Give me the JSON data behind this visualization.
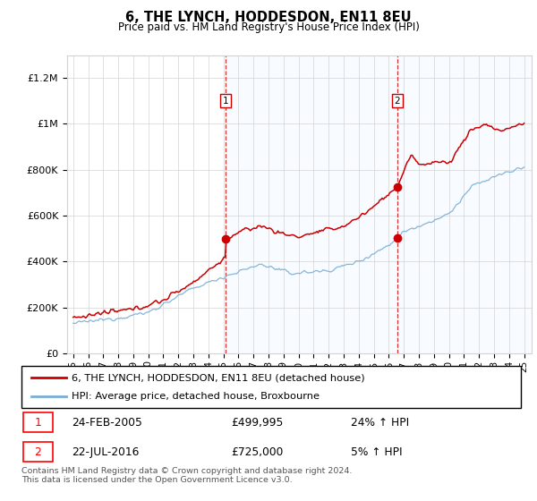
{
  "title": "6, THE LYNCH, HODDESDON, EN11 8EU",
  "subtitle": "Price paid vs. HM Land Registry's House Price Index (HPI)",
  "ylim": [
    0,
    1300000
  ],
  "yticks": [
    0,
    200000,
    400000,
    600000,
    800000,
    1000000,
    1200000
  ],
  "ytick_labels": [
    "£0",
    "£200K",
    "£400K",
    "£600K",
    "£800K",
    "£1M",
    "£1.2M"
  ],
  "sale1_x": 2005.13,
  "sale1_price": 499995,
  "sale2_x": 2016.55,
  "sale2_price": 725000,
  "legend_label1": "6, THE LYNCH, HODDESDON, EN11 8EU (detached house)",
  "legend_label2": "HPI: Average price, detached house, Broxbourne",
  "footer": "Contains HM Land Registry data © Crown copyright and database right 2024.\nThis data is licensed under the Open Government Licence v3.0.",
  "table_row1": [
    "1",
    "24-FEB-2005",
    "£499,995",
    "24% ↑ HPI"
  ],
  "table_row2": [
    "2",
    "22-JUL-2016",
    "£725,000",
    "5% ↑ HPI"
  ],
  "hpi_color": "#7aaed6",
  "price_color": "#cc0000",
  "vline_color": "#cc0000",
  "fill_color": "#ddeeff"
}
